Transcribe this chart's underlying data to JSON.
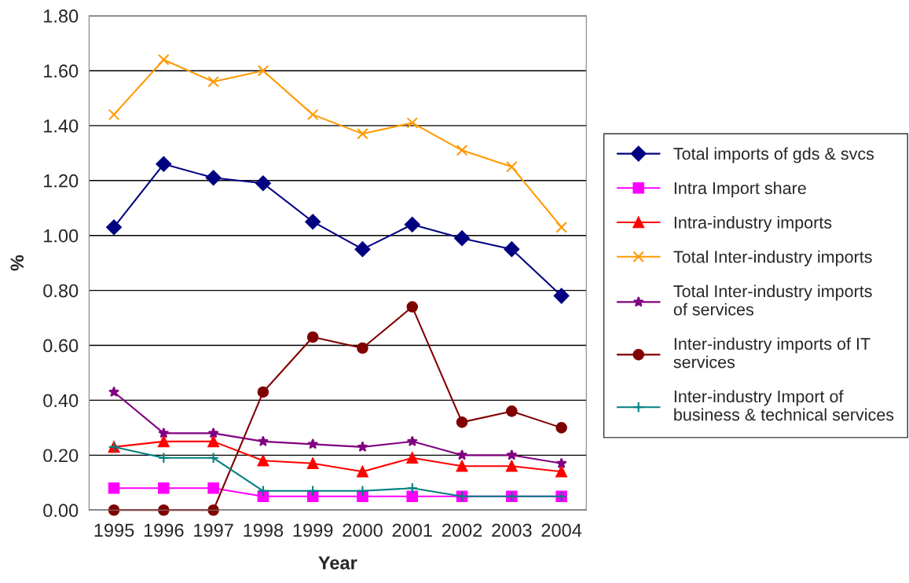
{
  "chart_data": {
    "type": "line",
    "xlabel": "Year",
    "ylabel": "%",
    "categories": [
      "1995",
      "1996",
      "1997",
      "1998",
      "1999",
      "2000",
      "2001",
      "2002",
      "2003",
      "2004"
    ],
    "series": [
      {
        "name": "Total imports of gds & svcs",
        "color": "#000080",
        "marker": "diamond",
        "values": [
          1.03,
          1.26,
          1.21,
          1.19,
          1.05,
          0.95,
          1.04,
          0.99,
          0.95,
          0.78
        ]
      },
      {
        "name": "Intra Import share",
        "color": "#ff00ff",
        "marker": "square",
        "values": [
          0.08,
          0.08,
          0.08,
          0.05,
          0.05,
          0.05,
          0.05,
          0.05,
          0.05,
          0.05
        ]
      },
      {
        "name": "Intra-industry imports",
        "color": "#ff0000",
        "marker": "triangle",
        "values": [
          0.23,
          0.25,
          0.25,
          0.18,
          0.17,
          0.14,
          0.19,
          0.16,
          0.16,
          0.14
        ]
      },
      {
        "name": "Total Inter-industry imports",
        "color": "#ff9900",
        "marker": "cross",
        "values": [
          1.44,
          1.64,
          1.56,
          1.6,
          1.44,
          1.37,
          1.41,
          1.31,
          1.25,
          1.03
        ]
      },
      {
        "name": "Total Inter-industry imports of services",
        "color": "#800080",
        "marker": "star",
        "values": [
          0.43,
          0.28,
          0.28,
          0.25,
          0.24,
          0.23,
          0.25,
          0.2,
          0.2,
          0.17
        ]
      },
      {
        "name": "Inter-industry imports of IT services",
        "color": "#800000",
        "marker": "circle",
        "values": [
          0.0,
          0.0,
          0.0,
          0.43,
          0.63,
          0.59,
          0.74,
          0.32,
          0.36,
          0.3
        ]
      },
      {
        "name": "Inter-industry Import of business & technical services",
        "color": "#008080",
        "marker": "plus",
        "values": [
          0.23,
          0.19,
          0.19,
          0.07,
          0.07,
          0.07,
          0.08,
          0.05,
          0.05,
          0.05
        ]
      }
    ],
    "ylim": [
      0,
      1.8
    ],
    "yticks": [
      {
        "value": 0,
        "label": "0.00"
      },
      {
        "value": 0.2,
        "label": "0.20"
      },
      {
        "value": 0.4,
        "label": "0.40"
      },
      {
        "value": 0.6,
        "label": "0.60"
      },
      {
        "value": 0.8,
        "label": "0.80"
      },
      {
        "value": 1.0,
        "label": "1.00"
      },
      {
        "value": 1.2,
        "label": "1.20"
      },
      {
        "value": 1.4,
        "label": "1.40"
      },
      {
        "value": 1.6,
        "label": "1.60"
      },
      {
        "value": 1.8,
        "label": "1.80"
      }
    ],
    "grid": "y",
    "legend": "right",
    "line_style": "solid"
  }
}
